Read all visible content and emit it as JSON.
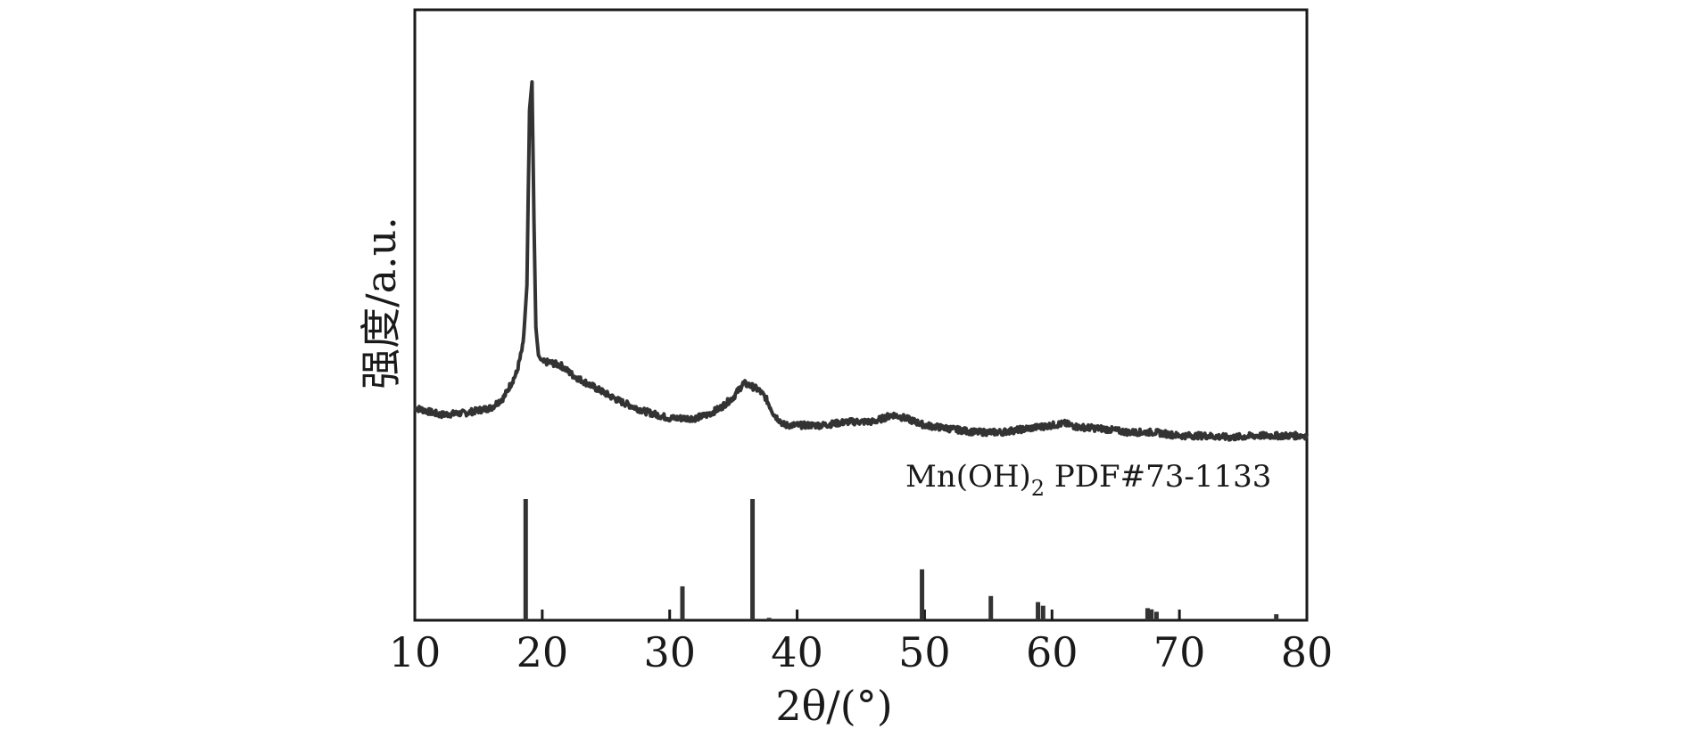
{
  "chart_data": {
    "type": "line",
    "xlabel": "2θ/(°)",
    "ylabel": "强度/a.u.",
    "xlim": [
      10,
      80
    ],
    "xticks": [
      10,
      20,
      30,
      40,
      50,
      60,
      70,
      80
    ],
    "yticks_shown": false,
    "grid": false,
    "series": [
      {
        "x": [
          10,
          12,
          14,
          16,
          17,
          18,
          18.5,
          18.8,
          19.0,
          19.2,
          19.35,
          19.5,
          19.7,
          20.0,
          20.5,
          21.5,
          22.5,
          24,
          26,
          28,
          30,
          32,
          33,
          34,
          35,
          35.8,
          36.5,
          37,
          37.5,
          38.2,
          39,
          40,
          42,
          44,
          46,
          47.5,
          48.5,
          50,
          52,
          54,
          56,
          58,
          60,
          61,
          62,
          64,
          66,
          68,
          70,
          72,
          74,
          76,
          78,
          80
        ],
        "y": [
          0.07,
          0.05,
          0.055,
          0.07,
          0.1,
          0.17,
          0.25,
          0.42,
          0.92,
          1.0,
          0.6,
          0.3,
          0.22,
          0.2,
          0.2,
          0.19,
          0.16,
          0.13,
          0.09,
          0.06,
          0.04,
          0.04,
          0.05,
          0.07,
          0.1,
          0.14,
          0.13,
          0.12,
          0.1,
          0.05,
          0.02,
          0.02,
          0.02,
          0.03,
          0.03,
          0.05,
          0.04,
          0.02,
          0.01,
          0.0,
          0.0,
          0.01,
          0.02,
          0.025,
          0.015,
          0.01,
          0.0,
          0.0,
          -0.01,
          -0.01,
          -0.015,
          -0.01,
          -0.01,
          -0.01
        ]
      }
    ],
    "reference": {
      "label_main": "Mn(OH)",
      "label_sub": "2",
      "label_rest": " PDF#73-1133",
      "peaks_x": [
        18.7,
        31.0,
        36.5,
        37.8,
        49.8,
        55.2,
        58.9,
        59.3,
        67.5,
        67.8,
        68.2,
        77.6
      ],
      "peaks_y": [
        1.0,
        0.28,
        1.0,
        0.02,
        0.42,
        0.2,
        0.15,
        0.12,
        0.1,
        0.09,
        0.07,
        0.05
      ]
    }
  }
}
